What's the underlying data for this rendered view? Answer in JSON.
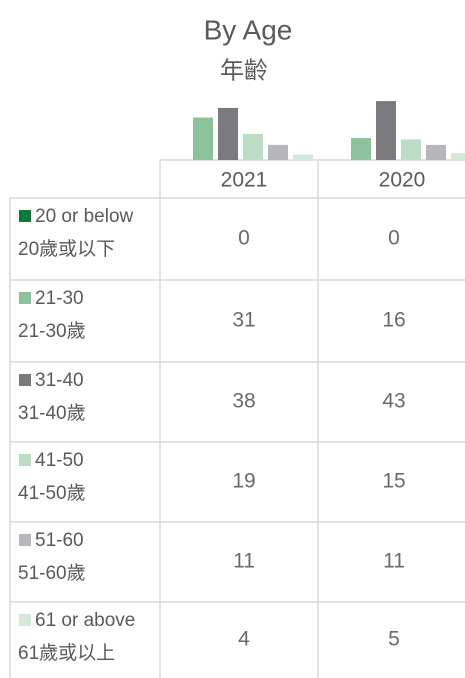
{
  "title": "By Age",
  "subtitle": "年齡",
  "columns": [
    "2021",
    "2020"
  ],
  "rows": [
    {
      "label": "20 or below",
      "label_zh": "20歲或以下",
      "color": "#0b7a3a",
      "values": [
        0,
        0
      ]
    },
    {
      "label": "21-30",
      "label_zh": "21-30歲",
      "color": "#8cc19b",
      "values": [
        31,
        16
      ]
    },
    {
      "label": "31-40",
      "label_zh": "31-40歲",
      "color": "#7a7a7e",
      "values": [
        38,
        43
      ]
    },
    {
      "label": "41-50",
      "label_zh": "41-50歲",
      "color": "#bcdcc5",
      "values": [
        19,
        15
      ]
    },
    {
      "label": "51-60",
      "label_zh": "51-60歲",
      "color": "#b6b6bb",
      "values": [
        11,
        11
      ]
    },
    {
      "label": "61 or above",
      "label_zh": "61歲或以上",
      "color": "#d3e8d8",
      "values": [
        4,
        5
      ]
    }
  ]
}
